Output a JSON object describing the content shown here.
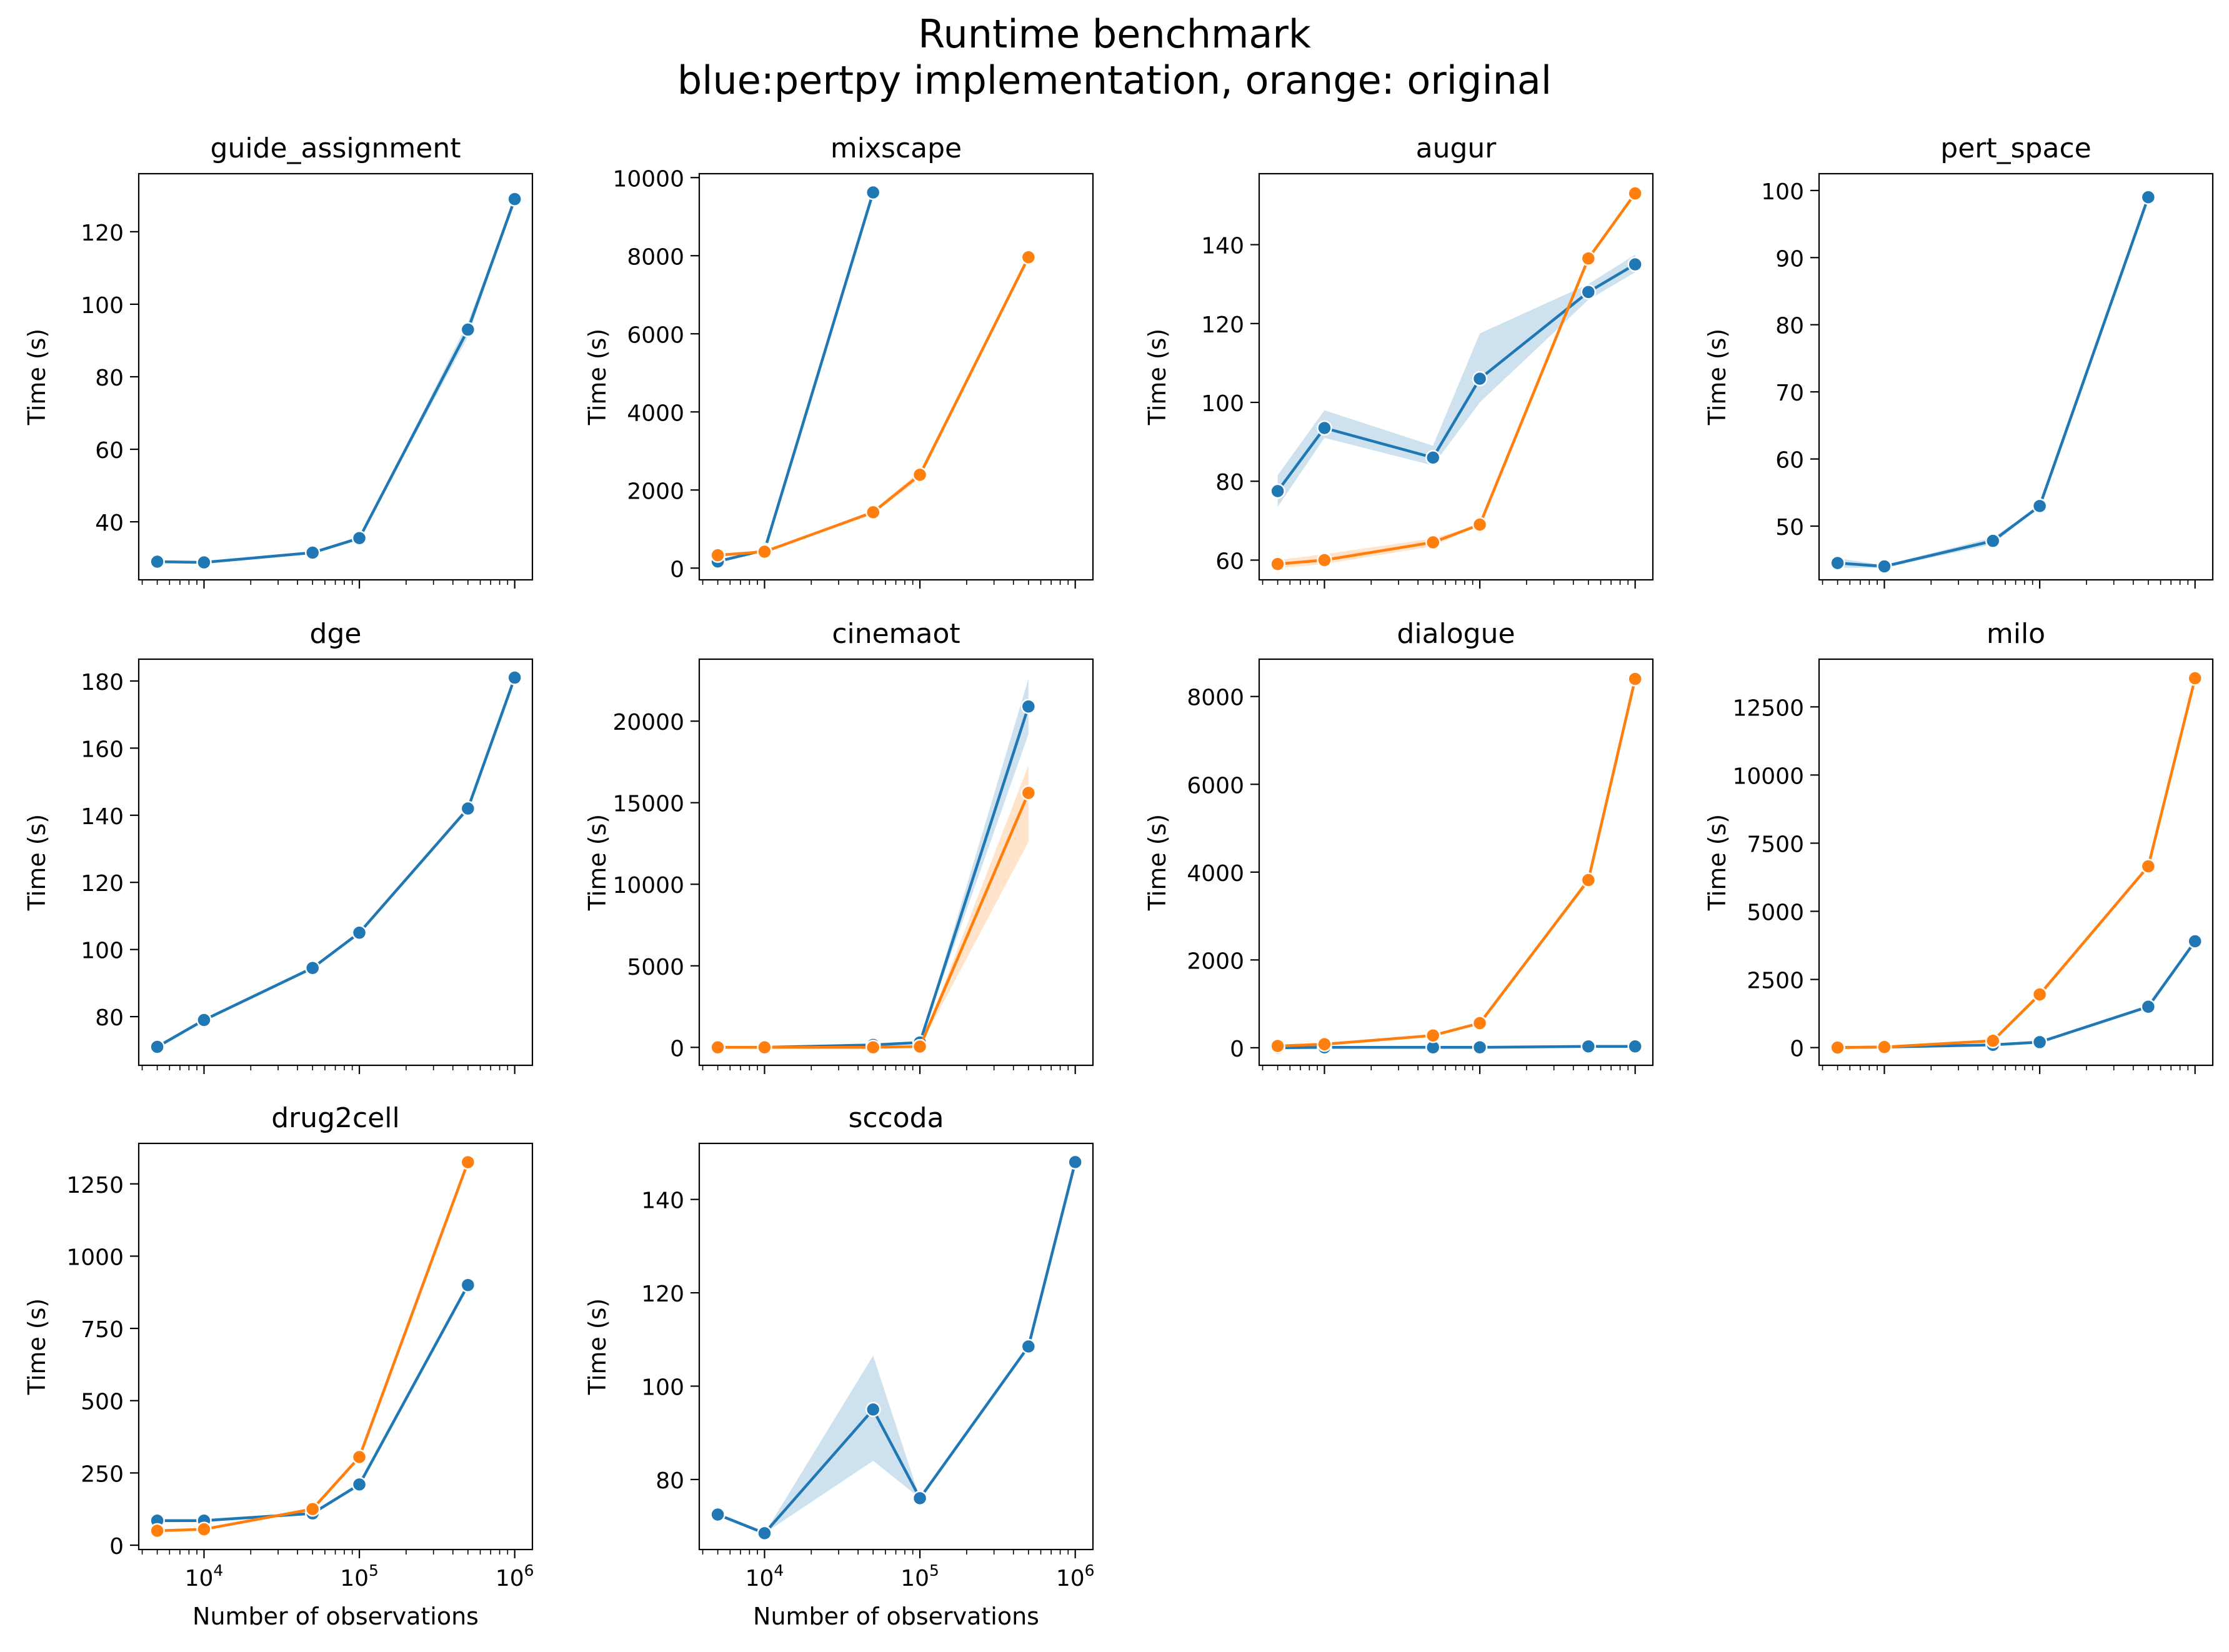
{
  "figure": {
    "title_line1": "Runtime benchmark",
    "title_line2": "blue:pertpy implementation, orange: original"
  },
  "colors": {
    "pertpy": "#1f77b4",
    "original": "#ff7f0e"
  },
  "chart_data": [
    {
      "type": "line",
      "title": "guide_assignment",
      "xlabel": "",
      "ylabel": "Time (s)",
      "xscale": "log",
      "xlim": [
        3800,
        1300000
      ],
      "ylim": [
        24,
        136
      ],
      "yticks": [
        40,
        60,
        80,
        100,
        120
      ],
      "series": [
        {
          "color": "#1f77b4",
          "x": [
            5000,
            10000,
            50000,
            100000,
            500000,
            1000000
          ],
          "y": [
            29,
            28.8,
            31.5,
            35.5,
            93,
            129
          ],
          "band": [
            [
              29,
              29
            ],
            [
              28.8,
              28.8
            ],
            [
              31.5,
              31.5
            ],
            [
              35.5,
              35.5
            ],
            [
              91,
              95
            ],
            [
              129,
              129
            ]
          ]
        }
      ]
    },
    {
      "type": "line",
      "title": "mixscape",
      "xlabel": "",
      "ylabel": "Time (s)",
      "xscale": "log",
      "xlim": [
        3800,
        1300000
      ],
      "ylim": [
        -300,
        10100
      ],
      "yticks": [
        0,
        2000,
        4000,
        6000,
        8000,
        10000
      ],
      "series": [
        {
          "color": "#1f77b4",
          "x": [
            5000,
            10000,
            50000
          ],
          "y": [
            170,
            460,
            9620
          ]
        },
        {
          "color": "#ff7f0e",
          "x": [
            5000,
            10000,
            50000,
            100000,
            500000
          ],
          "y": [
            330,
            420,
            1430,
            2390,
            7960
          ],
          "band": [
            [
              330,
              330
            ],
            [
              420,
              420
            ],
            [
              1380,
              1480
            ],
            [
              2300,
              2480
            ],
            [
              7900,
              8020
            ]
          ]
        }
      ]
    },
    {
      "type": "line",
      "title": "augur",
      "xlabel": "",
      "ylabel": "Time (s)",
      "xscale": "log",
      "xlim": [
        3800,
        1300000
      ],
      "ylim": [
        55,
        158
      ],
      "yticks": [
        60,
        80,
        100,
        120,
        140
      ],
      "series": [
        {
          "color": "#1f77b4",
          "x": [
            5000,
            10000,
            50000,
            100000,
            500000,
            1000000
          ],
          "y": [
            77.5,
            93.5,
            86,
            106,
            128,
            135
          ],
          "band": [
            [
              73.5,
              81.5
            ],
            [
              91,
              98
            ],
            [
              84,
              89
            ],
            [
              100,
              117.5
            ],
            [
              126,
              130
            ],
            [
              133,
              137.5
            ]
          ]
        },
        {
          "color": "#ff7f0e",
          "x": [
            5000,
            10000,
            50000,
            100000,
            500000,
            1000000
          ],
          "y": [
            59,
            60,
            64.5,
            69,
            136.5,
            153
          ],
          "band": [
            [
              58,
              60
            ],
            [
              59,
              61.5
            ],
            [
              63.5,
              65.5
            ],
            [
              69,
              69
            ],
            [
              136.5,
              136.5
            ],
            [
              153,
              153
            ]
          ]
        }
      ]
    },
    {
      "type": "line",
      "title": "pert_space",
      "xlabel": "",
      "ylabel": "Time (s)",
      "xscale": "log",
      "xlim": [
        3800,
        1300000
      ],
      "ylim": [
        42,
        102.5
      ],
      "yticks": [
        50,
        60,
        70,
        80,
        90,
        100
      ],
      "series": [
        {
          "color": "#1f77b4",
          "x": [
            5000,
            10000,
            50000,
            100000,
            500000
          ],
          "y": [
            44.5,
            44,
            47.8,
            53,
            99
          ],
          "band": [
            [
              43.8,
              45.2
            ],
            [
              43.8,
              44.2
            ],
            [
              47.3,
              48.3
            ],
            [
              53,
              53
            ],
            [
              99,
              99
            ]
          ]
        }
      ]
    },
    {
      "type": "line",
      "title": "dge",
      "xlabel": "",
      "ylabel": "Time (s)",
      "xscale": "log",
      "xlim": [
        3800,
        1300000
      ],
      "ylim": [
        65.5,
        186.5
      ],
      "yticks": [
        80,
        100,
        120,
        140,
        160,
        180
      ],
      "series": [
        {
          "color": "#1f77b4",
          "x": [
            5000,
            10000,
            50000,
            100000,
            500000,
            1000000
          ],
          "y": [
            71,
            79,
            94.5,
            105,
            142,
            181
          ]
        }
      ]
    },
    {
      "type": "line",
      "title": "cinemaot",
      "xlabel": "",
      "ylabel": "Time (s)",
      "xscale": "log",
      "xlim": [
        3800,
        1300000
      ],
      "ylim": [
        -1100,
        23800
      ],
      "yticks": [
        0,
        5000,
        10000,
        15000,
        20000
      ],
      "series": [
        {
          "color": "#1f77b4",
          "x": [
            5000,
            10000,
            50000,
            100000,
            500000
          ],
          "y": [
            0,
            0,
            150,
            300,
            20900
          ],
          "band": [
            [
              0,
              0
            ],
            [
              0,
              0
            ],
            [
              150,
              150
            ],
            [
              300,
              300
            ],
            [
              19200,
              22600
            ]
          ]
        },
        {
          "color": "#ff7f0e",
          "x": [
            5000,
            10000,
            50000,
            100000,
            500000
          ],
          "y": [
            0,
            0,
            0,
            50,
            15600
          ],
          "band": [
            [
              0,
              0
            ],
            [
              0,
              0
            ],
            [
              0,
              0
            ],
            [
              50,
              50
            ],
            [
              12600,
              17300
            ]
          ]
        }
      ]
    },
    {
      "type": "line",
      "title": "dialogue",
      "xlabel": "",
      "ylabel": "Time (s)",
      "xscale": "log",
      "xlim": [
        3800,
        1300000
      ],
      "ylim": [
        -400,
        8850
      ],
      "yticks": [
        0,
        2000,
        4000,
        6000,
        8000
      ],
      "series": [
        {
          "color": "#1f77b4",
          "x": [
            5000,
            10000,
            50000,
            100000,
            500000,
            1000000
          ],
          "y": [
            0,
            10,
            10,
            10,
            30,
            30
          ]
        },
        {
          "color": "#ff7f0e",
          "x": [
            5000,
            10000,
            50000,
            100000,
            500000,
            1000000
          ],
          "y": [
            40,
            80,
            280,
            560,
            3820,
            8400
          ],
          "band": [
            [
              40,
              40
            ],
            [
              80,
              80
            ],
            [
              280,
              280
            ],
            [
              560,
              560
            ],
            [
              3750,
              3890
            ],
            [
              8400,
              8400
            ]
          ]
        }
      ]
    },
    {
      "type": "line",
      "title": "milo",
      "xlabel": "",
      "ylabel": "Time (s)",
      "xscale": "log",
      "xlim": [
        3800,
        1300000
      ],
      "ylim": [
        -650,
        14250
      ],
      "yticks": [
        0,
        2500,
        5000,
        7500,
        10000,
        12500
      ],
      "series": [
        {
          "color": "#1f77b4",
          "x": [
            5000,
            10000,
            50000,
            100000,
            500000,
            1000000
          ],
          "y": [
            0,
            20,
            100,
            200,
            1500,
            3900
          ]
        },
        {
          "color": "#ff7f0e",
          "x": [
            5000,
            10000,
            50000,
            100000,
            500000,
            1000000
          ],
          "y": [
            0,
            20,
            250,
            1950,
            6650,
            13550
          ]
        }
      ]
    },
    {
      "type": "line",
      "title": "drug2cell",
      "xlabel": "Number of observations",
      "ylabel": "Time (s)",
      "xscale": "log",
      "xlim": [
        3800,
        1300000
      ],
      "ylim": [
        -15,
        1390
      ],
      "yticks": [
        0,
        250,
        500,
        750,
        1000,
        1250
      ],
      "series": [
        {
          "color": "#1f77b4",
          "x": [
            5000,
            10000,
            50000,
            100000,
            500000
          ],
          "y": [
            85,
            85,
            110,
            210,
            900
          ]
        },
        {
          "color": "#ff7f0e",
          "x": [
            5000,
            10000,
            50000,
            100000,
            500000
          ],
          "y": [
            50,
            55,
            125,
            305,
            1325
          ]
        }
      ]
    },
    {
      "type": "line",
      "title": "sccoda",
      "xlabel": "Number of observations",
      "ylabel": "Time (s)",
      "xscale": "log",
      "xlim": [
        3800,
        1300000
      ],
      "ylim": [
        65,
        152
      ],
      "yticks": [
        80,
        100,
        120,
        140
      ],
      "series": [
        {
          "color": "#1f77b4",
          "x": [
            5000,
            10000,
            50000,
            100000,
            500000,
            1000000
          ],
          "y": [
            72.5,
            68.5,
            95,
            76,
            108.5,
            148
          ],
          "band": [
            [
              72.5,
              72.5
            ],
            [
              68.5,
              68.5
            ],
            [
              84,
              106.5
            ],
            [
              76,
              76
            ],
            [
              108.5,
              108.5
            ],
            [
              148,
              148
            ]
          ]
        }
      ]
    }
  ]
}
